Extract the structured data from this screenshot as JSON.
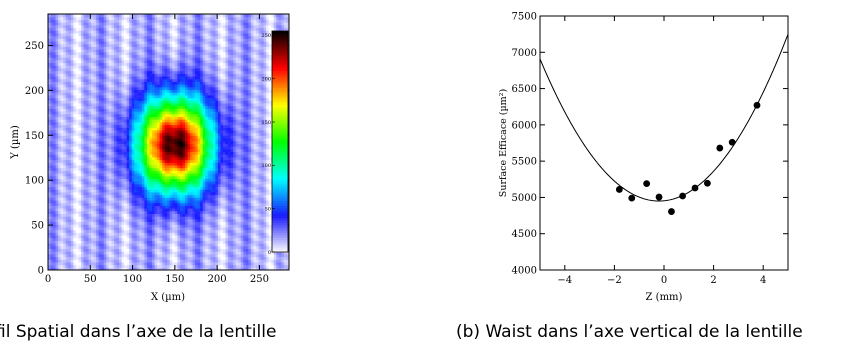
{
  "captions": {
    "a": "rofil Spatial dans l’axe de la lentille",
    "b": "(b) Waist dans l’axe vertical de la lentille"
  },
  "chart_data": [
    {
      "type": "heatmap",
      "xlabel": "X (µm)",
      "ylabel": "Y (µm)",
      "xlim": [
        0,
        285
      ],
      "ylim": [
        0,
        285
      ],
      "x_ticks": [
        0,
        50,
        100,
        150,
        200,
        250
      ],
      "y_ticks": [
        0,
        50,
        100,
        150,
        200,
        250
      ],
      "colorbar": {
        "range": [
          0,
          255
        ],
        "ticks": [
          0,
          50,
          100,
          150,
          200,
          250
        ],
        "colormap": [
          "#ffffff",
          "#1a1aff",
          "#00ffff",
          "#00ff00",
          "#ffff00",
          "#ff0000",
          "#000000"
        ]
      },
      "spot": {
        "center_x": 150,
        "center_y": 140,
        "peak": 240,
        "sigma_x": 30,
        "sigma_y": 36
      }
    },
    {
      "type": "scatter",
      "xlabel": "Z (mm)",
      "ylabel": "Surface Efficace (µm²)",
      "xlim": [
        -5,
        5
      ],
      "ylim": [
        4000,
        7500
      ],
      "x_ticks": [
        -4,
        -2,
        0,
        2,
        4
      ],
      "x_tick_labels": [
        "−4",
        "−2",
        "0",
        "2",
        "4"
      ],
      "y_ticks": [
        4000,
        4500,
        5000,
        5500,
        6000,
        6500,
        7000,
        7500
      ],
      "points": [
        {
          "x": -1.8,
          "y": 5110
        },
        {
          "x": -1.3,
          "y": 4990
        },
        {
          "x": -0.7,
          "y": 5190
        },
        {
          "x": -0.2,
          "y": 5005
        },
        {
          "x": 0.3,
          "y": 4805
        },
        {
          "x": 0.75,
          "y": 5020
        },
        {
          "x": 1.25,
          "y": 5130
        },
        {
          "x": 1.75,
          "y": 5195
        },
        {
          "x": 2.25,
          "y": 5680
        },
        {
          "x": 2.75,
          "y": 5760
        },
        {
          "x": 3.75,
          "y": 6270
        }
      ],
      "fit": {
        "model": "parabola",
        "x0": -0.2,
        "y0": 4950,
        "coef": 85
      }
    }
  ]
}
